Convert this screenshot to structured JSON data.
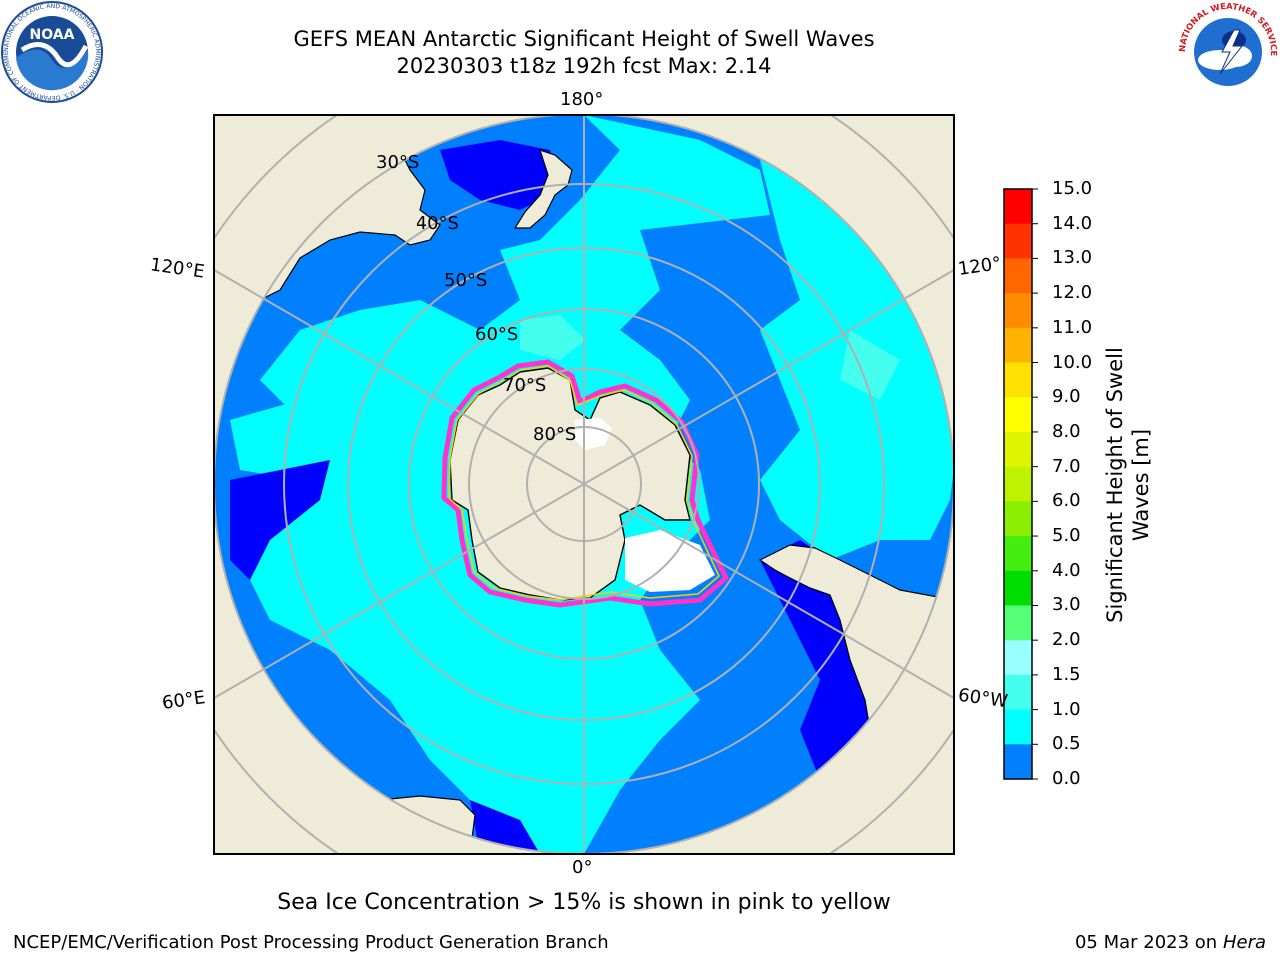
{
  "header": {
    "title_line1": "GEFS MEAN Antarctic Significant Height of Swell Waves",
    "title_line2": "20230303 t18z 192h fcst   Max: 2.14"
  },
  "map": {
    "projection": "south polar stereographic",
    "longitude_labels": {
      "top": "180°",
      "bottom": "0°",
      "left_upper": "120°E",
      "left_lower": "60°E",
      "right_upper": "120°",
      "right_lower": "60°W"
    },
    "latitude_labels": [
      "30°S",
      "40°S",
      "50°S",
      "60°S",
      "70°S",
      "80°S"
    ],
    "colors": {
      "land": "#eeecd9",
      "ice_edge": "#ff33cc",
      "ice_edge_yellow": "#ffcc00",
      "grid": "#b0b0b0"
    }
  },
  "colorbar": {
    "label": "Significant Height of Swell Waves [m]",
    "ticks": [
      "15.0",
      "14.0",
      "13.0",
      "12.0",
      "11.0",
      "10.0",
      "9.0",
      "8.0",
      "7.0",
      "6.0",
      "5.0",
      "4.0",
      "3.0",
      "2.0",
      "1.5",
      "1.0",
      "0.5",
      "0.0"
    ],
    "colors_top_to_bottom": [
      "#ff0000",
      "#ff3300",
      "#ff6600",
      "#ff8c00",
      "#ffb300",
      "#ffe100",
      "#ffff00",
      "#e0f500",
      "#bff200",
      "#8cee00",
      "#44ee11",
      "#00dd00",
      "#55ff77",
      "#99ffff",
      "#44ffee",
      "#00ffff",
      "#0080ff",
      "#0000ff"
    ]
  },
  "note": "Sea Ice Concentration > 15% is shown in pink to yellow",
  "footer": {
    "left": "NCEP/EMC/Verification Post Processing Product Generation Branch",
    "right_date": "05 Mar 2023 on",
    "right_machine": "Hera"
  },
  "logos": {
    "noaa_text": "NOAA",
    "noaa_ring_text": "NATIONAL OCEANIC AND ATMOSPHERIC ADMINISTRATION · U.S. DEPARTMENT OF COMMERCE",
    "nws_ring_text": "NATIONAL WEATHER SERVICE"
  }
}
